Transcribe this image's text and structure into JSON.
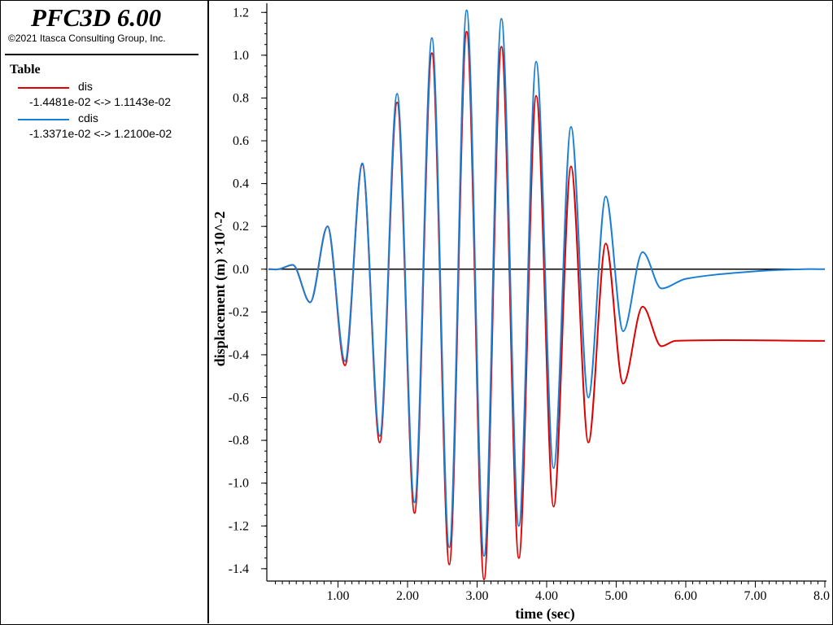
{
  "app": {
    "title": "PFC3D 6.00",
    "copyright": "©2021 Itasca Consulting Group, Inc."
  },
  "legend": {
    "heading": "Table",
    "items": [
      {
        "name": "dis",
        "color": "#e00000",
        "range": "-1.4481e-02 <->  1.1143e-02"
      },
      {
        "name": "cdis",
        "color": "#1a7fd4",
        "range": "-1.3371e-02 <->  1.2100e-02"
      }
    ]
  },
  "chart_data": {
    "type": "line",
    "xlabel": "time (sec)",
    "ylabel": "displacement (m) ×10^-2",
    "xlim": [
      0,
      8.0
    ],
    "ylim": [
      -1.45,
      1.22
    ],
    "x_ticks": [
      1.0,
      2.0,
      3.0,
      4.0,
      5.0,
      6.0,
      7.0,
      8.0
    ],
    "x_tick_labels": [
      "1.00",
      "2.00",
      "3.00",
      "4.00",
      "5.00",
      "6.00",
      "7.00",
      "8.0"
    ],
    "y_ticks": [
      1.2,
      1.0,
      0.8,
      0.6,
      0.4,
      0.2,
      0.0,
      -0.2,
      -0.4,
      -0.6,
      -0.8,
      -1.0,
      -1.2,
      -1.4
    ],
    "y_tick_labels": [
      "1.2",
      "1.0",
      "0.8",
      "0.6",
      "0.4",
      "0.2",
      "0.0",
      "-0.2",
      "-0.4",
      "-0.6",
      "-0.8",
      "-1.0",
      "-1.2",
      "-1.4"
    ],
    "zero_line": true,
    "series": [
      {
        "name": "dis",
        "color": "#e00000",
        "x": [
          0.0,
          0.15,
          0.35,
          0.6,
          0.85,
          1.1,
          1.35,
          1.6,
          1.85,
          2.1,
          2.35,
          2.6,
          2.85,
          3.1,
          3.35,
          3.6,
          3.85,
          4.1,
          4.35,
          4.6,
          4.85,
          5.1,
          5.38,
          5.65,
          5.85,
          8.0
        ],
        "y": [
          0.0,
          0.0,
          0.02,
          -0.155,
          0.2,
          -0.45,
          0.49,
          -0.81,
          0.78,
          -1.14,
          1.01,
          -1.38,
          1.11,
          -1.45,
          1.04,
          -1.35,
          0.81,
          -1.11,
          0.48,
          -0.81,
          0.12,
          -0.535,
          -0.175,
          -0.36,
          -0.335,
          -0.335
        ]
      },
      {
        "name": "cdis",
        "color": "#1a7fd4",
        "x": [
          0.0,
          0.15,
          0.35,
          0.6,
          0.85,
          1.1,
          1.35,
          1.6,
          1.85,
          2.1,
          2.35,
          2.6,
          2.85,
          3.1,
          3.35,
          3.6,
          3.85,
          4.1,
          4.35,
          4.6,
          4.85,
          5.1,
          5.38,
          5.65,
          6.0,
          7.0,
          7.7,
          8.0
        ],
        "y": [
          0.0,
          0.0,
          0.02,
          -0.155,
          0.2,
          -0.43,
          0.495,
          -0.78,
          0.82,
          -1.09,
          1.08,
          -1.3,
          1.21,
          -1.34,
          1.17,
          -1.2,
          0.97,
          -0.93,
          0.665,
          -0.6,
          0.34,
          -0.29,
          0.08,
          -0.09,
          -0.045,
          -0.01,
          0.0,
          0.0
        ]
      }
    ]
  }
}
